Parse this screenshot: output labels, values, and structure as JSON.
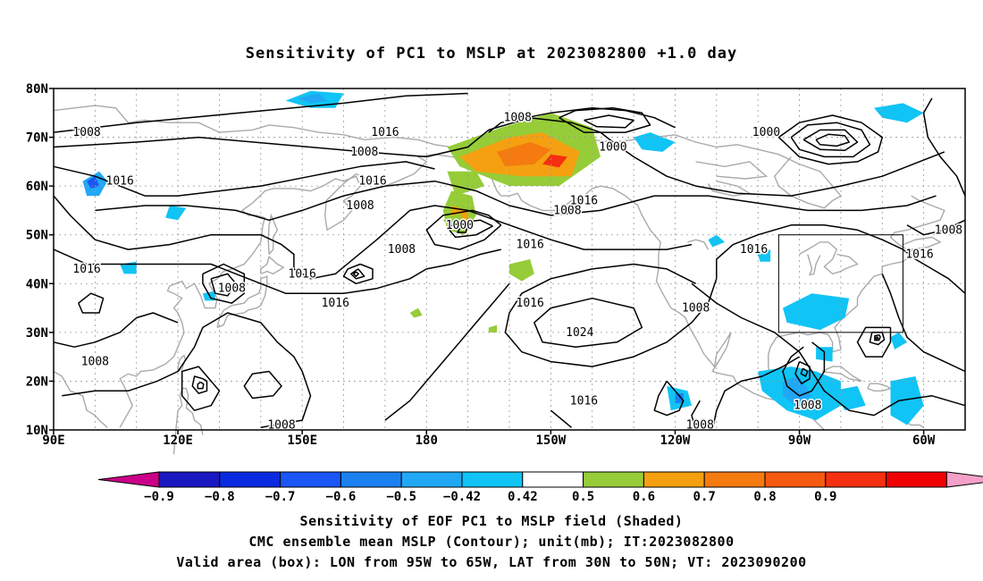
{
  "title": "Sensitivity of PC1 to MSLP at 2023082800 +1.0 day",
  "axes": {
    "lat_labels": [
      "80N",
      "70N",
      "60N",
      "50N",
      "40N",
      "30N",
      "20N",
      "10N"
    ],
    "lon_labels": [
      "90E",
      "120E",
      "150E",
      "180",
      "150W",
      "120W",
      "90W",
      "60W"
    ]
  },
  "contour_labels": [
    {
      "text": "1008",
      "lon": 98,
      "lat": 71
    },
    {
      "text": "1008",
      "lon": 165,
      "lat": 67
    },
    {
      "text": "1016",
      "lon": 170,
      "lat": 71
    },
    {
      "text": "1016",
      "lon": 167,
      "lat": 61
    },
    {
      "text": "1008",
      "lon": -158,
      "lat": 74
    },
    {
      "text": "1000",
      "lon": -135,
      "lat": 68
    },
    {
      "text": "1000",
      "lon": -98,
      "lat": 71
    },
    {
      "text": "1016",
      "lon": 106,
      "lat": 61
    },
    {
      "text": "1008",
      "lon": 164,
      "lat": 56
    },
    {
      "text": "1000",
      "lon": -172,
      "lat": 52
    },
    {
      "text": "1008",
      "lon": -146,
      "lat": 55
    },
    {
      "text": "1008",
      "lon": 174,
      "lat": 47
    },
    {
      "text": "1016",
      "lon": -155,
      "lat": 48
    },
    {
      "text": "1016",
      "lon": -142,
      "lat": 57
    },
    {
      "text": "1016",
      "lon": 98,
      "lat": 43
    },
    {
      "text": "1008",
      "lon": 133,
      "lat": 39
    },
    {
      "text": "1016",
      "lon": 150,
      "lat": 42
    },
    {
      "text": "1016",
      "lon": 158,
      "lat": 36
    },
    {
      "text": "1016",
      "lon": -155,
      "lat": 36
    },
    {
      "text": "1024",
      "lon": -143,
      "lat": 30
    },
    {
      "text": "1016",
      "lon": -142,
      "lat": 16
    },
    {
      "text": "1016",
      "lon": -101,
      "lat": 47
    },
    {
      "text": "1008",
      "lon": -115,
      "lat": 35
    },
    {
      "text": "1008",
      "lon": 100,
      "lat": 24
    },
    {
      "text": "1008",
      "lon": 145,
      "lat": 11
    },
    {
      "text": "1008",
      "lon": -114,
      "lat": 11
    },
    {
      "text": "1008",
      "lon": -88,
      "lat": 15
    },
    {
      "text": "1008",
      "lon": -54,
      "lat": 51
    },
    {
      "text": "1016",
      "lon": -61,
      "lat": 46
    }
  ],
  "pressure_centers": [
    {
      "kind": "low",
      "lon": -170,
      "lat": 52
    },
    {
      "kind": "low",
      "lon": 163,
      "lat": 42
    },
    {
      "kind": "low",
      "lon": 126,
      "lat": 19
    },
    {
      "kind": "low",
      "lon": -87,
      "lat": 22
    },
    {
      "kind": "low",
      "lon": -71,
      "lat": 29
    },
    {
      "kind": "low",
      "lon": -135,
      "lat": 72
    },
    {
      "kind": "low",
      "lon": -77,
      "lat": 69
    },
    {
      "kind": "low",
      "lon": 130,
      "lat": 40
    },
    {
      "kind": "high",
      "lon": -143,
      "lat": 30
    }
  ],
  "valid_box": {
    "lon_min": -95,
    "lon_max": -65,
    "lat_min": 30,
    "lat_max": 50
  },
  "shaded_regions": [
    {
      "sign": "pos",
      "level": 0.7,
      "lon": -160,
      "lat": 65
    },
    {
      "sign": "pos",
      "level": 0.7,
      "lon": -149,
      "lat": 66
    },
    {
      "sign": "pos",
      "level": 0.8,
      "lon": -172,
      "lat": 53
    },
    {
      "sign": "pos",
      "level": 0.6,
      "lon": -165,
      "lat": 67
    },
    {
      "sign": "pos",
      "level": 0.5,
      "lon": -157,
      "lat": 42
    },
    {
      "sign": "neg",
      "level": -0.6,
      "lon": 99,
      "lat": 60
    },
    {
      "sign": "neg",
      "level": -0.6,
      "lon": 153,
      "lat": 77
    },
    {
      "sign": "neg",
      "level": -0.5,
      "lon": -125,
      "lat": 69
    },
    {
      "sign": "neg",
      "level": -0.5,
      "lon": -68,
      "lat": 75
    },
    {
      "sign": "neg",
      "level": -0.5,
      "lon": -85,
      "lat": 33
    },
    {
      "sign": "neg",
      "level": -0.6,
      "lon": -88,
      "lat": 18
    },
    {
      "sign": "neg",
      "level": -0.5,
      "lon": -75,
      "lat": 15
    },
    {
      "sign": "neg",
      "level": -0.5,
      "lon": -119,
      "lat": 16
    },
    {
      "sign": "neg",
      "level": -0.5,
      "lon": -63,
      "lat": 13
    }
  ],
  "colorbar": {
    "colors": [
      "#cc0088",
      "#1a18c0",
      "#0a2ae0",
      "#1a55f5",
      "#1a80f0",
      "#20a8f5",
      "#10c4f5",
      "#ffffff",
      "#96cc38",
      "#f5a010",
      "#f57a10",
      "#f55a10",
      "#f53010",
      "#f00000",
      "#f5a0c8"
    ],
    "labels": [
      "−0.9",
      "−0.8",
      "−0.7",
      "−0.6",
      "−0.5",
      "−0.42",
      "0.42",
      "0.5",
      "0.6",
      "0.7",
      "0.8",
      "0.9"
    ]
  },
  "captions": {
    "line1": "Sensitivity of EOF PC1 to MSLP field (Shaded)",
    "line2": "CMC ensemble mean MSLP (Contour); unit(mb); IT:2023082800",
    "line3": "Valid area (box): LON from 95W to 65W, LAT from 30N to 50N; VT: 2023090200"
  }
}
